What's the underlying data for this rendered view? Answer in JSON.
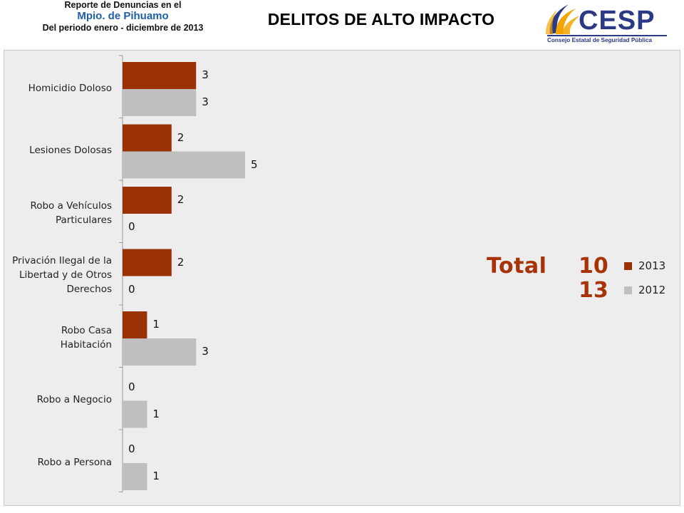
{
  "header": {
    "line1": "Reporte de Denuncias en el",
    "line2": "Mpio. de Pihuamo",
    "line3": "Del periodo enero - diciembre de 2013",
    "title": "DELITOS DE ALTO IMPACTO"
  },
  "logo": {
    "name": "CESP",
    "subtitle": "Consejo Estatal de Seguridad Pública",
    "icon": "flame-swoosh-icon",
    "color": "#2b3a86",
    "accent_colors": [
      "#f2a500",
      "#2b3a86"
    ]
  },
  "colors": {
    "series_2013": "#9b3206",
    "series_2012": "#bfbfbf",
    "total_text": "#a83308"
  },
  "chart_data": {
    "type": "bar",
    "orientation": "horizontal",
    "categories": [
      "Homicidio Doloso",
      "Lesiones Dolosas",
      "Robo a Vehículos Particulares",
      "Privación Ilegal de la Libertad y de Otros Derechos",
      "Robo Casa Habitación",
      "Robo a Negocio",
      "Robo a Persona"
    ],
    "category_lines": [
      [
        "Homicidio Doloso"
      ],
      [
        "Lesiones Dolosas"
      ],
      [
        "Robo a Vehículos",
        "Particulares"
      ],
      [
        "Privación Ilegal de la",
        "Libertad y de Otros",
        "Derechos"
      ],
      [
        "Robo Casa",
        "Habitación"
      ],
      [
        "Robo a Negocio"
      ],
      [
        "Robo a Persona"
      ]
    ],
    "series": [
      {
        "name": "2013",
        "values": [
          3,
          2,
          2,
          2,
          1,
          0,
          0
        ]
      },
      {
        "name": "2012",
        "values": [
          3,
          5,
          0,
          0,
          3,
          1,
          1
        ]
      }
    ],
    "xlim": [
      0,
      5
    ],
    "grid": false,
    "legend": "right",
    "data_labels": true
  },
  "totals": {
    "label": "Total",
    "value_2013": "10",
    "value_2012": "13",
    "legend_2013": "2013",
    "legend_2012": "2012"
  }
}
